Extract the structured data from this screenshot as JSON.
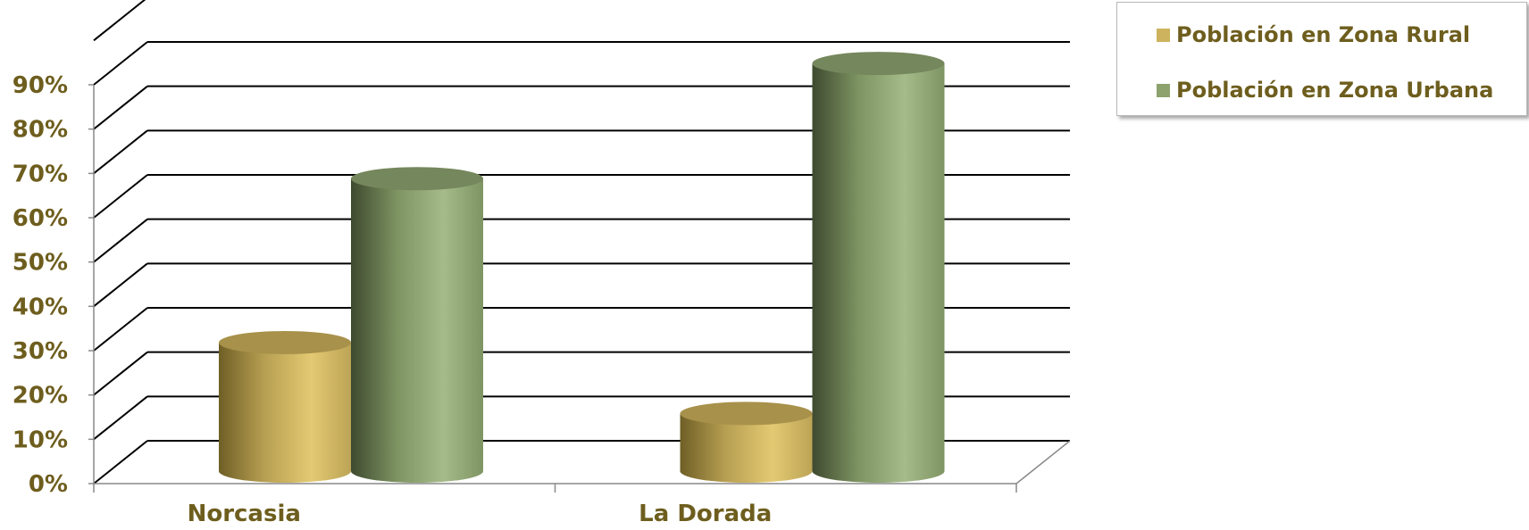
{
  "chart_data": {
    "type": "bar",
    "variant": "3d-cylinder",
    "categories": [
      "Norcasia",
      "La Dorada"
    ],
    "series": [
      {
        "name": "Población en Zona Rural",
        "values": [
          29,
          13
        ],
        "color": "#cdb35e"
      },
      {
        "name": "Población en Zona Urbana",
        "values": [
          66,
          92
        ],
        "color": "#8ea26e"
      }
    ],
    "ylim": [
      0,
      90
    ],
    "yticks": [
      "0%",
      "10%",
      "20%",
      "30%",
      "40%",
      "50%",
      "60%",
      "70%",
      "80%",
      "90%"
    ],
    "grid": true,
    "legend_position": "top-right",
    "text_color": "#6e5e1e"
  }
}
